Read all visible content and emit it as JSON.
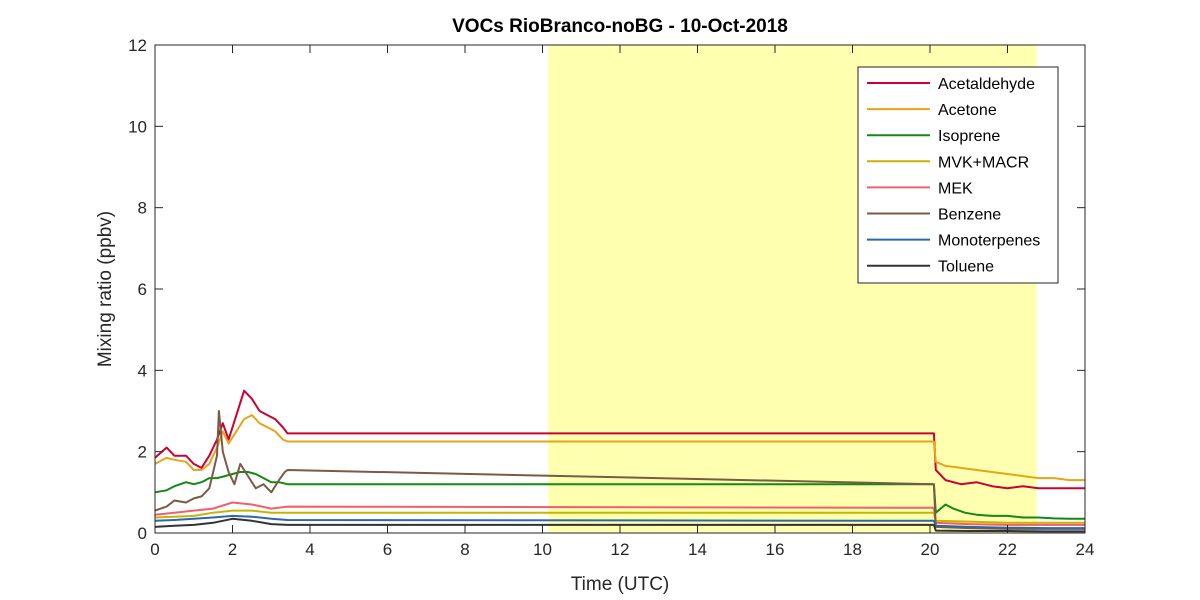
{
  "chart_data": {
    "type": "line",
    "title": "VOCs RioBranco-noBG - 10-Oct-2018",
    "xlabel": "Time (UTC)",
    "ylabel": "Mixing ratio (ppbv)",
    "xlim": [
      0,
      24
    ],
    "ylim": [
      0,
      12
    ],
    "xticks": [
      "0",
      "2",
      "4",
      "6",
      "8",
      "10",
      "12",
      "14",
      "16",
      "18",
      "20",
      "22",
      "24"
    ],
    "yticks": [
      "0",
      "2",
      "4",
      "6",
      "8",
      "10",
      "12"
    ],
    "highlight_span": {
      "x_start": 10.15,
      "x_end": 22.75,
      "color": "#ffffb0"
    },
    "legend_position": "top-right",
    "grid": false,
    "series": [
      {
        "name": "Acetaldehyde",
        "color": "#cc0033",
        "points": [
          [
            0,
            1.85
          ],
          [
            0.3,
            2.1
          ],
          [
            0.5,
            1.9
          ],
          [
            0.8,
            1.9
          ],
          [
            1.0,
            1.7
          ],
          [
            1.2,
            1.6
          ],
          [
            1.4,
            1.9
          ],
          [
            1.6,
            2.3
          ],
          [
            1.75,
            2.7
          ],
          [
            1.9,
            2.3
          ],
          [
            2.1,
            2.9
          ],
          [
            2.3,
            3.5
          ],
          [
            2.5,
            3.3
          ],
          [
            2.7,
            3.0
          ],
          [
            2.9,
            2.9
          ],
          [
            3.1,
            2.8
          ],
          [
            3.3,
            2.6
          ],
          [
            3.42,
            2.45
          ],
          [
            20.1,
            2.45
          ],
          [
            20.15,
            1.55
          ],
          [
            20.4,
            1.3
          ],
          [
            20.8,
            1.2
          ],
          [
            21.2,
            1.25
          ],
          [
            21.6,
            1.15
          ],
          [
            22.0,
            1.1
          ],
          [
            22.4,
            1.15
          ],
          [
            22.8,
            1.1
          ],
          [
            23.2,
            1.1
          ],
          [
            23.6,
            1.1
          ],
          [
            24,
            1.1
          ]
        ]
      },
      {
        "name": "Acetone",
        "color": "#e8a317",
        "points": [
          [
            0,
            1.7
          ],
          [
            0.3,
            1.85
          ],
          [
            0.5,
            1.8
          ],
          [
            0.8,
            1.75
          ],
          [
            1.0,
            1.55
          ],
          [
            1.2,
            1.55
          ],
          [
            1.4,
            1.7
          ],
          [
            1.6,
            2.1
          ],
          [
            1.75,
            2.5
          ],
          [
            1.9,
            2.2
          ],
          [
            2.1,
            2.5
          ],
          [
            2.3,
            2.8
          ],
          [
            2.5,
            2.9
          ],
          [
            2.7,
            2.7
          ],
          [
            2.9,
            2.6
          ],
          [
            3.1,
            2.5
          ],
          [
            3.3,
            2.3
          ],
          [
            3.42,
            2.25
          ],
          [
            20.1,
            2.25
          ],
          [
            20.15,
            1.75
          ],
          [
            20.4,
            1.65
          ],
          [
            20.8,
            1.6
          ],
          [
            21.2,
            1.55
          ],
          [
            21.6,
            1.5
          ],
          [
            22.0,
            1.45
          ],
          [
            22.4,
            1.4
          ],
          [
            22.8,
            1.35
          ],
          [
            23.2,
            1.35
          ],
          [
            23.6,
            1.3
          ],
          [
            24,
            1.3
          ]
        ]
      },
      {
        "name": "Isoprene",
        "color": "#128a12",
        "points": [
          [
            0,
            1.0
          ],
          [
            0.3,
            1.05
          ],
          [
            0.5,
            1.15
          ],
          [
            0.8,
            1.25
          ],
          [
            1.0,
            1.2
          ],
          [
            1.2,
            1.25
          ],
          [
            1.4,
            1.35
          ],
          [
            1.6,
            1.35
          ],
          [
            1.8,
            1.4
          ],
          [
            2.0,
            1.45
          ],
          [
            2.2,
            1.5
          ],
          [
            2.4,
            1.5
          ],
          [
            2.6,
            1.45
          ],
          [
            2.8,
            1.35
          ],
          [
            3.0,
            1.25
          ],
          [
            3.2,
            1.25
          ],
          [
            3.42,
            1.2
          ],
          [
            20.1,
            1.2
          ],
          [
            20.15,
            0.5
          ],
          [
            20.4,
            0.7
          ],
          [
            20.6,
            0.6
          ],
          [
            20.9,
            0.5
          ],
          [
            21.2,
            0.45
          ],
          [
            21.6,
            0.42
          ],
          [
            22.0,
            0.42
          ],
          [
            22.4,
            0.38
          ],
          [
            22.8,
            0.38
          ],
          [
            23.2,
            0.36
          ],
          [
            23.6,
            0.35
          ],
          [
            24,
            0.35
          ]
        ]
      },
      {
        "name": "MVK+MACR",
        "color": "#c8b400",
        "points": [
          [
            0,
            0.38
          ],
          [
            0.5,
            0.4
          ],
          [
            1.0,
            0.42
          ],
          [
            1.5,
            0.5
          ],
          [
            2.0,
            0.55
          ],
          [
            2.5,
            0.55
          ],
          [
            3.0,
            0.5
          ],
          [
            3.42,
            0.5
          ],
          [
            20.1,
            0.5
          ],
          [
            20.15,
            0.3
          ],
          [
            21.0,
            0.28
          ],
          [
            22.0,
            0.25
          ],
          [
            23.0,
            0.25
          ],
          [
            24,
            0.25
          ]
        ]
      },
      {
        "name": "MEK",
        "color": "#f05f6e",
        "points": [
          [
            0,
            0.45
          ],
          [
            0.5,
            0.5
          ],
          [
            1.0,
            0.55
          ],
          [
            1.5,
            0.6
          ],
          [
            2.0,
            0.75
          ],
          [
            2.5,
            0.7
          ],
          [
            3.0,
            0.6
          ],
          [
            3.42,
            0.65
          ],
          [
            20.1,
            0.62
          ],
          [
            20.15,
            0.25
          ],
          [
            21.0,
            0.22
          ],
          [
            22.0,
            0.2
          ],
          [
            23.0,
            0.2
          ],
          [
            24,
            0.2
          ]
        ]
      },
      {
        "name": "Benzene",
        "color": "#7a5a44",
        "points": [
          [
            0,
            0.55
          ],
          [
            0.3,
            0.65
          ],
          [
            0.5,
            0.8
          ],
          [
            0.8,
            0.75
          ],
          [
            1.0,
            0.85
          ],
          [
            1.2,
            0.9
          ],
          [
            1.4,
            1.1
          ],
          [
            1.6,
            1.9
          ],
          [
            1.65,
            3.0
          ],
          [
            1.75,
            2.0
          ],
          [
            1.9,
            1.5
          ],
          [
            2.05,
            1.2
          ],
          [
            2.2,
            1.7
          ],
          [
            2.4,
            1.4
          ],
          [
            2.6,
            1.1
          ],
          [
            2.8,
            1.2
          ],
          [
            3.0,
            1.0
          ],
          [
            3.2,
            1.3
          ],
          [
            3.35,
            1.5
          ],
          [
            3.42,
            1.55
          ],
          [
            20.1,
            1.2
          ],
          [
            20.15,
            0.15
          ],
          [
            21.0,
            0.12
          ],
          [
            22.0,
            0.1
          ],
          [
            23.0,
            0.1
          ],
          [
            24,
            0.1
          ]
        ]
      },
      {
        "name": "Monoterpenes",
        "color": "#2b66b0",
        "points": [
          [
            0,
            0.3
          ],
          [
            0.5,
            0.32
          ],
          [
            1.0,
            0.35
          ],
          [
            1.5,
            0.38
          ],
          [
            2.0,
            0.42
          ],
          [
            2.5,
            0.4
          ],
          [
            3.0,
            0.35
          ],
          [
            3.42,
            0.32
          ],
          [
            20.1,
            0.3
          ],
          [
            20.15,
            0.18
          ],
          [
            21.0,
            0.15
          ],
          [
            22.0,
            0.13
          ],
          [
            23.0,
            0.12
          ],
          [
            24,
            0.12
          ]
        ]
      },
      {
        "name": "Toluene",
        "color": "#333333",
        "points": [
          [
            0,
            0.15
          ],
          [
            0.5,
            0.18
          ],
          [
            1.0,
            0.2
          ],
          [
            1.5,
            0.25
          ],
          [
            2.0,
            0.35
          ],
          [
            2.5,
            0.3
          ],
          [
            3.0,
            0.22
          ],
          [
            3.42,
            0.2
          ],
          [
            20.1,
            0.2
          ],
          [
            20.15,
            0.06
          ],
          [
            21.0,
            0.05
          ],
          [
            22.0,
            0.05
          ],
          [
            23.0,
            0.04
          ],
          [
            24,
            0.04
          ]
        ]
      }
    ]
  }
}
